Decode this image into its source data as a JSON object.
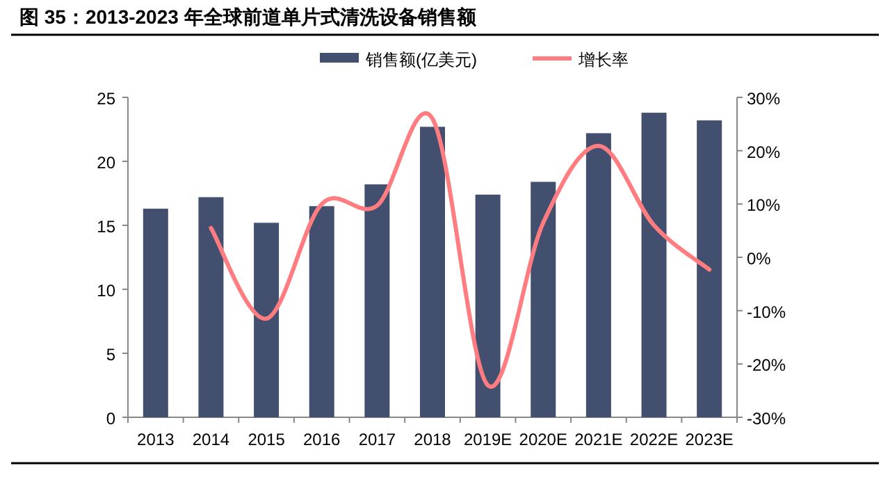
{
  "chart_data": {
    "type": "bar",
    "title": "图 35：2013-2023 年全球前道单片式清洗设备销售额",
    "categories": [
      "2013",
      "2014",
      "2015",
      "2016",
      "2017",
      "2018",
      "2019E",
      "2020E",
      "2021E",
      "2022E",
      "2023E"
    ],
    "series": [
      {
        "name": "销售额(亿美元)",
        "color": "#434f6e",
        "values": [
          16.3,
          17.2,
          15.2,
          16.5,
          18.2,
          22.7,
          17.4,
          18.4,
          22.2,
          23.8,
          23.2
        ]
      },
      {
        "name": "增长率",
        "type": "line",
        "axis": "y2",
        "color": "#ff7c80",
        "values": [
          null,
          5.5,
          -11.5,
          10,
          9.7,
          26,
          -24,
          6.5,
          20.9,
          6,
          -2.3
        ]
      }
    ],
    "ylim": [
      0,
      25
    ],
    "yticks": [
      0,
      5,
      10,
      15,
      20,
      25
    ],
    "y2lim": [
      -30,
      30
    ],
    "y2ticks": [
      {
        "value": -30,
        "label": "-30%"
      },
      {
        "value": -20,
        "label": "-20%"
      },
      {
        "value": -10,
        "label": "-10%"
      },
      {
        "value": 0,
        "label": "0%"
      },
      {
        "value": 10,
        "label": "10%"
      },
      {
        "value": 20,
        "label": "20%"
      },
      {
        "value": 30,
        "label": "30%"
      }
    ],
    "legend": "top",
    "grid": false
  }
}
